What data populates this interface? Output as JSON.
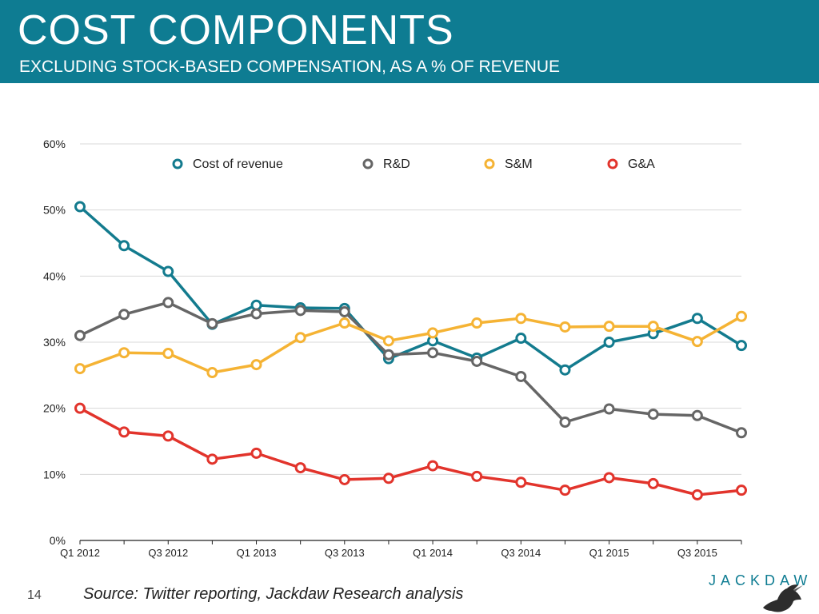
{
  "slide": {
    "title": "COST COMPONENTS",
    "subtitle": "EXCLUDING STOCK-BASED COMPENSATION, AS A % OF REVENUE",
    "number": "14",
    "source": "Source: Twitter reporting, Jackdaw Research analysis",
    "brand": "JACKDAW",
    "header_color": "#0e7c92"
  },
  "chart_data": {
    "type": "line",
    "categories": [
      "Q1 2012",
      "Q2 2012",
      "Q3 2012",
      "Q4 2012",
      "Q1 2013",
      "Q2 2013",
      "Q3 2013",
      "Q4 2013",
      "Q1 2014",
      "Q2 2014",
      "Q3 2014",
      "Q4 2014",
      "Q1 2015",
      "Q2 2015",
      "Q3 2015",
      "Q4 2015"
    ],
    "tick_labels": [
      "Q1 2012",
      "",
      "Q3 2012",
      "",
      "Q1 2013",
      "",
      "Q3 2013",
      "",
      "Q1 2014",
      "",
      "Q3 2014",
      "",
      "Q1 2015",
      "",
      "Q3 2015",
      ""
    ],
    "y_ticks": [
      0,
      10,
      20,
      30,
      40,
      50,
      60
    ],
    "y_tick_labels": [
      "0%",
      "10%",
      "20%",
      "30%",
      "40%",
      "50%",
      "60%"
    ],
    "ylim": [
      0,
      60
    ],
    "y_unit": "%",
    "grid": true,
    "legend_position": "top",
    "series": [
      {
        "name": "Cost of revenue",
        "color": "#137b8e",
        "values": [
          50.5,
          44.6,
          40.7,
          32.7,
          35.6,
          35.2,
          35.1,
          27.5,
          30.2,
          27.6,
          30.6,
          25.8,
          30.0,
          31.3,
          33.6,
          29.5
        ]
      },
      {
        "name": "R&D",
        "color": "#666666",
        "values": [
          31.0,
          34.2,
          36.0,
          32.8,
          34.3,
          34.8,
          34.6,
          28.1,
          28.4,
          27.1,
          24.8,
          17.9,
          19.9,
          19.1,
          18.9,
          16.3
        ]
      },
      {
        "name": "S&M",
        "color": "#f5b334",
        "values": [
          26.0,
          28.4,
          28.3,
          25.4,
          26.6,
          30.7,
          32.9,
          30.2,
          31.4,
          32.9,
          33.6,
          32.3,
          32.4,
          32.4,
          30.1,
          33.9
        ]
      },
      {
        "name": "G&A",
        "color": "#e2342c",
        "values": [
          20.0,
          16.4,
          15.8,
          12.3,
          13.2,
          11.0,
          9.2,
          9.4,
          11.3,
          9.7,
          8.8,
          7.6,
          9.5,
          8.6,
          6.9,
          7.6
        ]
      }
    ]
  }
}
